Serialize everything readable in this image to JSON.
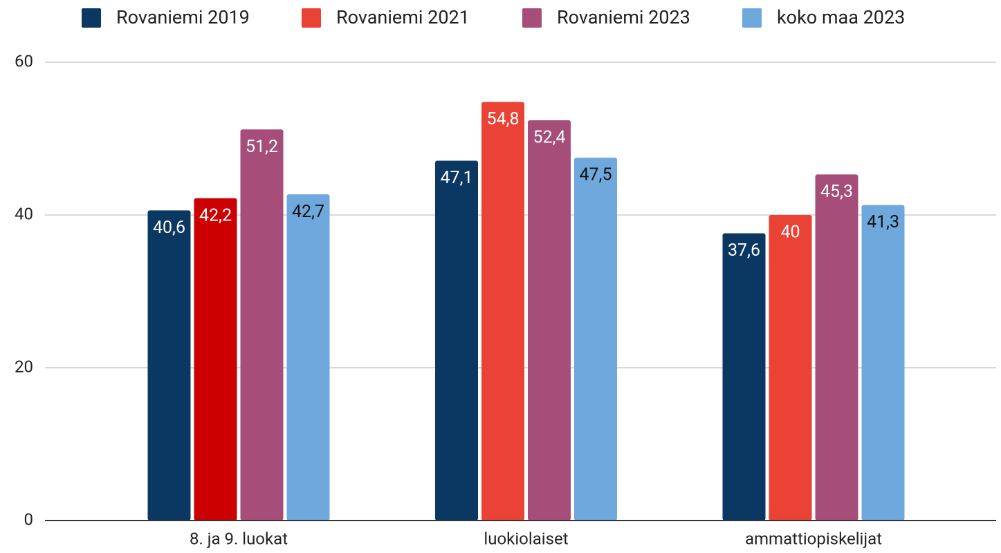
{
  "chart_data": {
    "type": "bar",
    "categories": [
      "8. ja 9. luokat",
      "luokiolaiset",
      "ammattiopiskelijat"
    ],
    "series": [
      {
        "name": "Rovaniemi 2019",
        "color": "#0b3862",
        "label_color": "#ffffff",
        "values": [
          40.6,
          47.1,
          37.6
        ],
        "value_labels": [
          "40,6",
          "47,1",
          "37,6"
        ]
      },
      {
        "name": "Rovaniemi 2021",
        "color": "#ea4335",
        "colors": [
          "#cc0000",
          "#ea4335",
          "#ea4335"
        ],
        "label_color": "#ffffff",
        "values": [
          42.2,
          54.8,
          40
        ],
        "value_labels": [
          "42,2",
          "54,8",
          "40"
        ]
      },
      {
        "name": "Rovaniemi 2023",
        "color": "#a64d79",
        "label_color": "#ffffff",
        "values": [
          51.2,
          52.4,
          45.3
        ],
        "value_labels": [
          "51,2",
          "52,4",
          "45,3"
        ]
      },
      {
        "name": "koko maa 2023",
        "color": "#6fa8dc",
        "label_color": "#111111",
        "values": [
          42.7,
          47.5,
          41.3
        ],
        "value_labels": [
          "42,7",
          "47,5",
          "41,3"
        ]
      }
    ],
    "ylim": [
      0,
      60
    ],
    "yticks": [
      0,
      20,
      40,
      60
    ],
    "grid": true,
    "legend": "top"
  }
}
